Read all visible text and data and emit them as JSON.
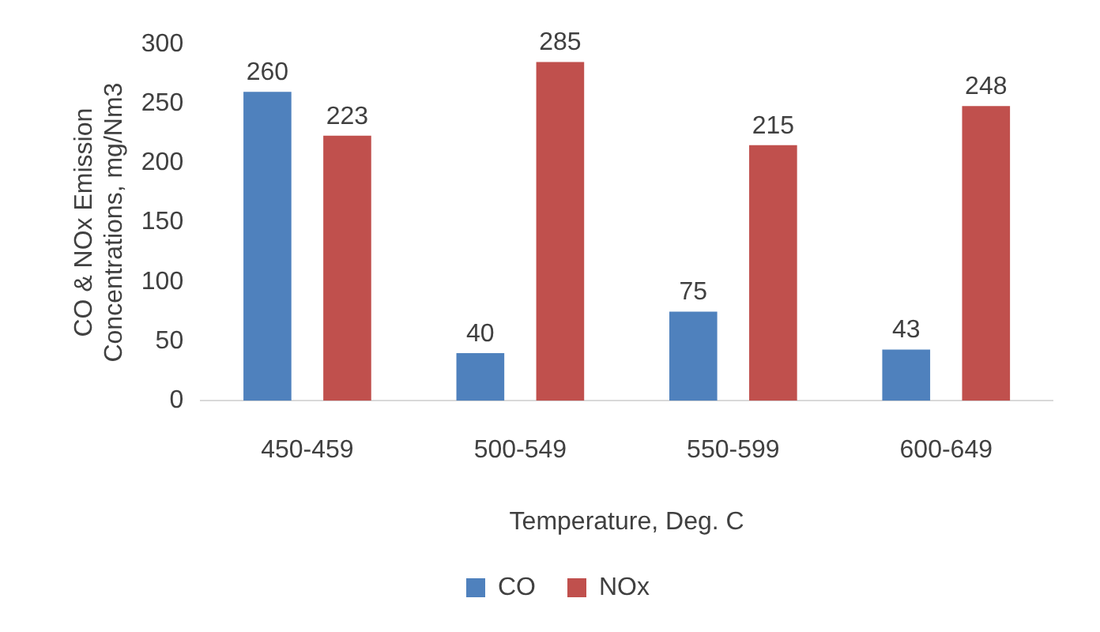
{
  "chart_data": {
    "type": "bar",
    "xlabel": "Temperature, Deg. C",
    "ylabel": "CO & NOx Emission Concentrations, mg/Nm3",
    "categories": [
      "450-459",
      "500-549",
      "550-599",
      "600-649"
    ],
    "series": [
      {
        "name": "CO",
        "color": "#4f81bd",
        "values": [
          260,
          40,
          75,
          43
        ]
      },
      {
        "name": "NOx",
        "color": "#c0504d",
        "values": [
          223,
          285,
          215,
          248
        ]
      }
    ],
    "ylim": [
      0,
      300
    ],
    "yticks": [
      0,
      50,
      100,
      150,
      200,
      250,
      300
    ],
    "grid": false,
    "legend": "bottom",
    "data_labels": true
  }
}
